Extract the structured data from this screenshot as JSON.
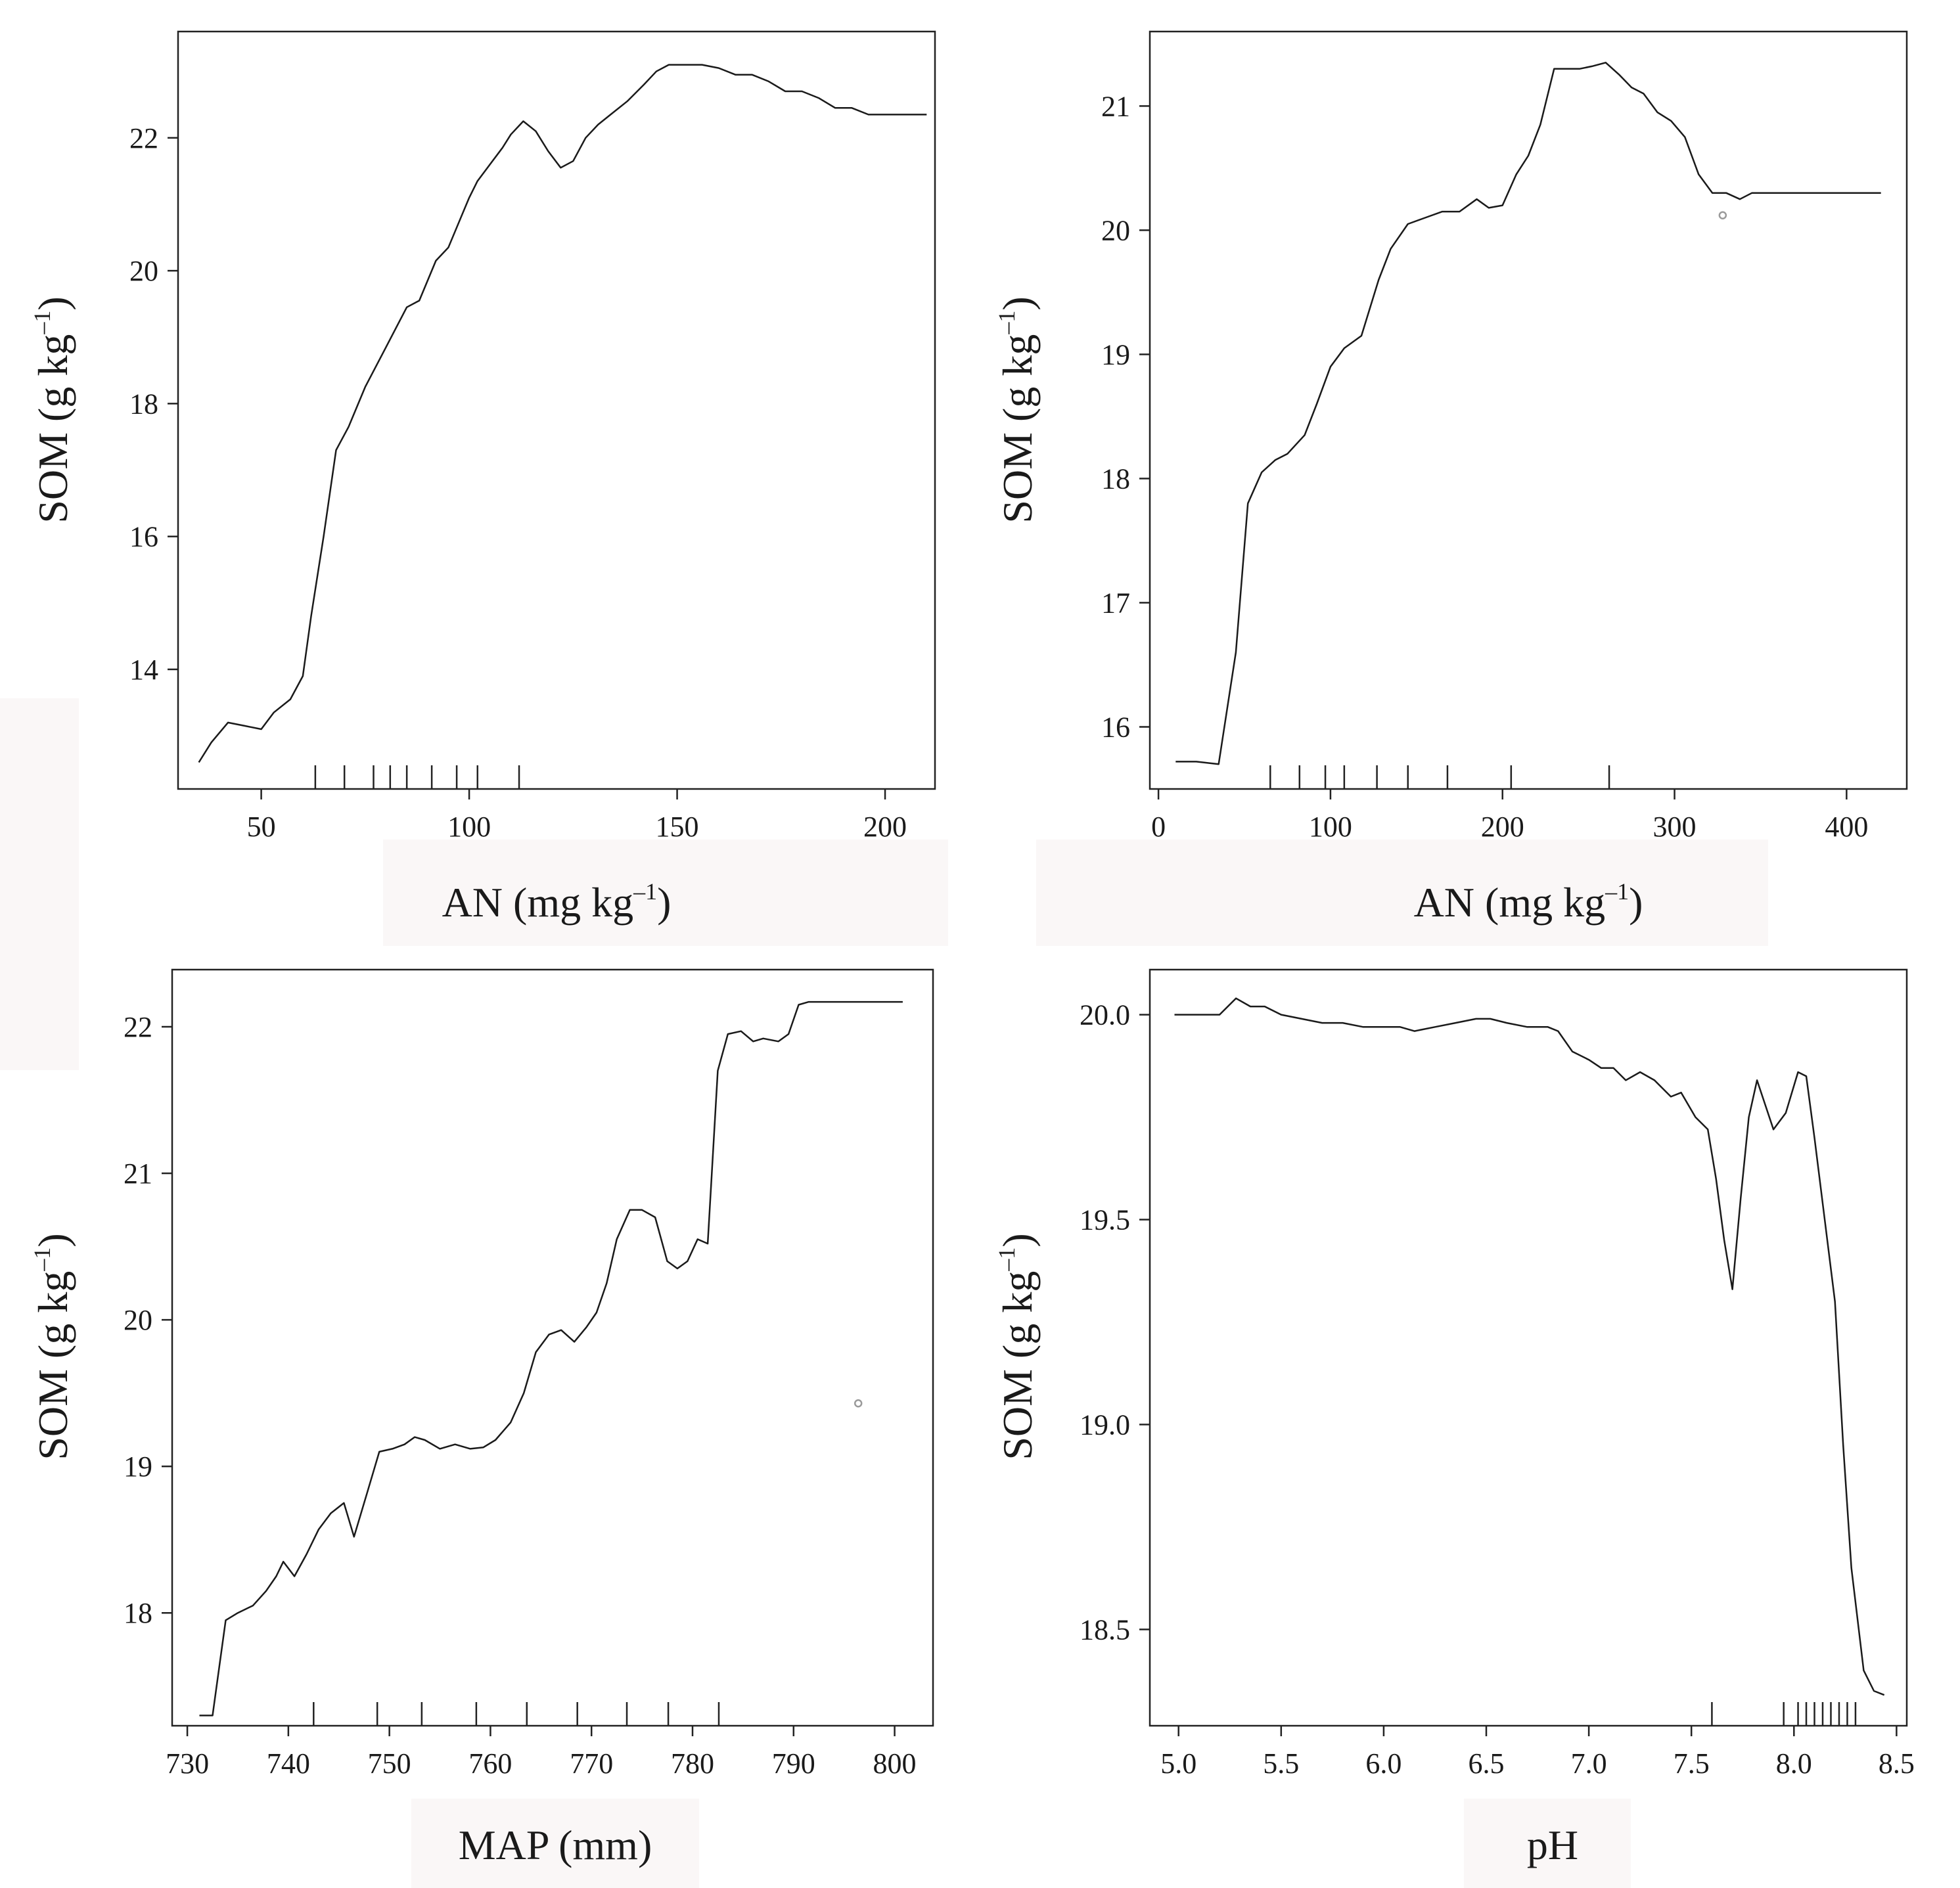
{
  "colors": {
    "line": "#1a1a1a",
    "axis": "#222222",
    "marker": "#9a9a9a",
    "background": "#ffffff"
  },
  "chart_data": [
    {
      "type": "line",
      "panel": "top-left",
      "xlabel": "AN (mg kg",
      "xlabel_sup": "–1",
      "xlabel_close": ")",
      "ylabel": "SOM (g kg",
      "ylabel_sup": "–1",
      "ylabel_close": ")",
      "xlim": [
        30,
        212
      ],
      "ylim": [
        12.2,
        23.6
      ],
      "xticks": [
        50,
        100,
        150,
        200
      ],
      "yticks": [
        14,
        16,
        18,
        20,
        22
      ],
      "x": [
        35,
        38,
        42,
        46,
        50,
        53,
        57,
        60,
        62,
        65,
        68,
        71,
        75,
        80,
        85,
        88,
        92,
        95,
        98,
        100,
        102,
        105,
        108,
        110,
        113,
        116,
        119,
        122,
        125,
        128,
        131,
        134,
        138,
        142,
        145,
        148,
        152,
        156,
        160,
        164,
        168,
        172,
        176,
        180,
        184,
        188,
        192,
        196,
        200,
        205,
        210
      ],
      "y": [
        12.6,
        12.9,
        13.2,
        13.15,
        13.1,
        13.35,
        13.55,
        13.9,
        14.8,
        16.0,
        17.3,
        17.65,
        18.25,
        18.85,
        19.45,
        19.55,
        20.15,
        20.35,
        20.8,
        21.1,
        21.35,
        21.6,
        21.85,
        22.05,
        22.25,
        22.1,
        21.8,
        21.55,
        21.65,
        22.0,
        22.2,
        22.35,
        22.55,
        22.8,
        23.0,
        23.1,
        23.1,
        23.1,
        23.05,
        22.95,
        22.95,
        22.85,
        22.7,
        22.7,
        22.6,
        22.45,
        22.45,
        22.35,
        22.35,
        22.35,
        22.35
      ],
      "rug": [
        63,
        70,
        77,
        81,
        85,
        91,
        97,
        102,
        112
      ]
    },
    {
      "type": "line",
      "panel": "top-right",
      "xlabel": "AN (mg kg",
      "xlabel_sup": "–1",
      "xlabel_close": ")",
      "ylabel": "SOM (g kg",
      "ylabel_sup": "–1",
      "ylabel_close": ")",
      "xlim": [
        -5,
        435
      ],
      "ylim": [
        15.5,
        21.6
      ],
      "xticks": [
        0,
        100,
        200,
        300,
        400
      ],
      "yticks": [
        16,
        17,
        18,
        19,
        20,
        21
      ],
      "x": [
        10,
        22,
        35,
        45,
        52,
        60,
        68,
        75,
        85,
        92,
        100,
        108,
        118,
        128,
        135,
        145,
        155,
        165,
        175,
        185,
        192,
        200,
        208,
        215,
        222,
        230,
        238,
        245,
        252,
        260,
        268,
        275,
        282,
        290,
        298,
        306,
        314,
        322,
        330,
        338,
        345,
        352,
        360,
        370,
        380,
        400,
        420
      ],
      "y": [
        15.72,
        15.72,
        15.7,
        16.6,
        17.8,
        18.05,
        18.15,
        18.2,
        18.35,
        18.6,
        18.9,
        19.05,
        19.15,
        19.6,
        19.85,
        20.05,
        20.1,
        20.15,
        20.15,
        20.25,
        20.18,
        20.2,
        20.45,
        20.6,
        20.85,
        21.3,
        21.3,
        21.3,
        21.32,
        21.35,
        21.25,
        21.15,
        21.1,
        20.95,
        20.88,
        20.75,
        20.45,
        20.3,
        20.3,
        20.25,
        20.3,
        20.3,
        20.3,
        20.3,
        20.3,
        20.3,
        20.3
      ],
      "rug": [
        65,
        82,
        97,
        108,
        127,
        145,
        168,
        205,
        262
      ],
      "marker": [
        328,
        20.12
      ]
    },
    {
      "type": "line",
      "panel": "bottom-left",
      "xlabel": "MAP (mm)",
      "ylabel": "SOM (g kg",
      "ylabel_sup": "–1",
      "ylabel_close": ")",
      "xlim": [
        728.5,
        803.8
      ],
      "ylim": [
        17.23,
        22.39
      ],
      "xticks": [
        730,
        740,
        750,
        760,
        770,
        780,
        790,
        800
      ],
      "yticks": [
        18,
        19,
        20,
        21,
        22
      ],
      "x": [
        731.2,
        732.5,
        733.8,
        735.0,
        736.5,
        737.8,
        738.8,
        739.5,
        740.6,
        741.8,
        743.0,
        744.2,
        745.5,
        746.5,
        747.8,
        749.0,
        750.3,
        751.5,
        752.5,
        753.5,
        755.0,
        756.5,
        758.0,
        759.3,
        760.5,
        762.0,
        763.3,
        764.5,
        765.8,
        767.0,
        768.3,
        769.5,
        770.5,
        771.5,
        772.5,
        773.8,
        775.0,
        776.3,
        777.5,
        778.5,
        779.5,
        780.5,
        781.5,
        782.5,
        783.5,
        784.8,
        786.0,
        787.0,
        788.5,
        789.5,
        790.5,
        791.5,
        792.8,
        794.0,
        795.3,
        796.5,
        797.8,
        798.8,
        799.8,
        800.8
      ],
      "y": [
        17.3,
        17.3,
        17.95,
        18.0,
        18.05,
        18.15,
        18.25,
        18.35,
        18.25,
        18.4,
        18.57,
        18.68,
        18.75,
        18.52,
        18.82,
        19.1,
        19.12,
        19.15,
        19.2,
        19.18,
        19.12,
        19.15,
        19.12,
        19.13,
        19.18,
        19.3,
        19.5,
        19.78,
        19.9,
        19.93,
        19.85,
        19.95,
        20.05,
        20.25,
        20.55,
        20.75,
        20.75,
        20.7,
        20.4,
        20.35,
        20.4,
        20.55,
        20.52,
        21.7,
        21.95,
        21.97,
        21.9,
        21.92,
        21.9,
        21.95,
        22.15,
        22.17,
        22.17,
        22.17,
        22.17,
        22.17,
        22.17,
        22.17,
        22.17,
        22.17
      ],
      "rug": [
        742.5,
        748.8,
        753.2,
        758.6,
        763.6,
        768.6,
        773.5,
        777.6,
        782.6
      ],
      "marker": [
        796.4,
        19.43
      ]
    },
    {
      "type": "line",
      "panel": "bottom-right",
      "xlabel": "pH",
      "ylabel": "SOM (g kg",
      "ylabel_sup": "–1",
      "ylabel_close": ")",
      "xlim": [
        4.86,
        8.55
      ],
      "ylim": [
        18.265,
        20.11
      ],
      "xticks": [
        "5.0",
        "5.5",
        "6.0",
        "6.5",
        "7.0",
        "7.5",
        "8.0",
        "8.5"
      ],
      "yticks": [
        "18.5",
        "19.0",
        "19.5",
        "20.0"
      ],
      "x": [
        4.98,
        5.08,
        5.2,
        5.28,
        5.35,
        5.42,
        5.5,
        5.6,
        5.7,
        5.8,
        5.9,
        6.0,
        6.08,
        6.15,
        6.25,
        6.35,
        6.45,
        6.52,
        6.6,
        6.7,
        6.8,
        6.85,
        6.92,
        7.0,
        7.06,
        7.12,
        7.18,
        7.25,
        7.32,
        7.4,
        7.45,
        7.52,
        7.58,
        7.62,
        7.66,
        7.7,
        7.74,
        7.78,
        7.82,
        7.86,
        7.9,
        7.96,
        8.02,
        8.06,
        8.1,
        8.15,
        8.2,
        8.24,
        8.28,
        8.34,
        8.39,
        8.44
      ],
      "y": [
        20.0,
        20.0,
        20.0,
        20.04,
        20.02,
        20.02,
        20.0,
        19.99,
        19.98,
        19.98,
        19.97,
        19.97,
        19.97,
        19.96,
        19.97,
        19.98,
        19.99,
        19.99,
        19.98,
        19.97,
        19.97,
        19.96,
        19.91,
        19.89,
        19.87,
        19.87,
        19.84,
        19.86,
        19.84,
        19.8,
        19.81,
        19.75,
        19.72,
        19.6,
        19.45,
        19.33,
        19.55,
        19.75,
        19.84,
        19.78,
        19.72,
        19.76,
        19.86,
        19.85,
        19.7,
        19.5,
        19.3,
        18.95,
        18.65,
        18.4,
        18.35,
        18.34
      ],
      "rug": [
        7.6,
        7.95,
        8.02,
        8.06,
        8.1,
        8.14,
        8.18,
        8.22,
        8.26,
        8.3
      ]
    }
  ]
}
